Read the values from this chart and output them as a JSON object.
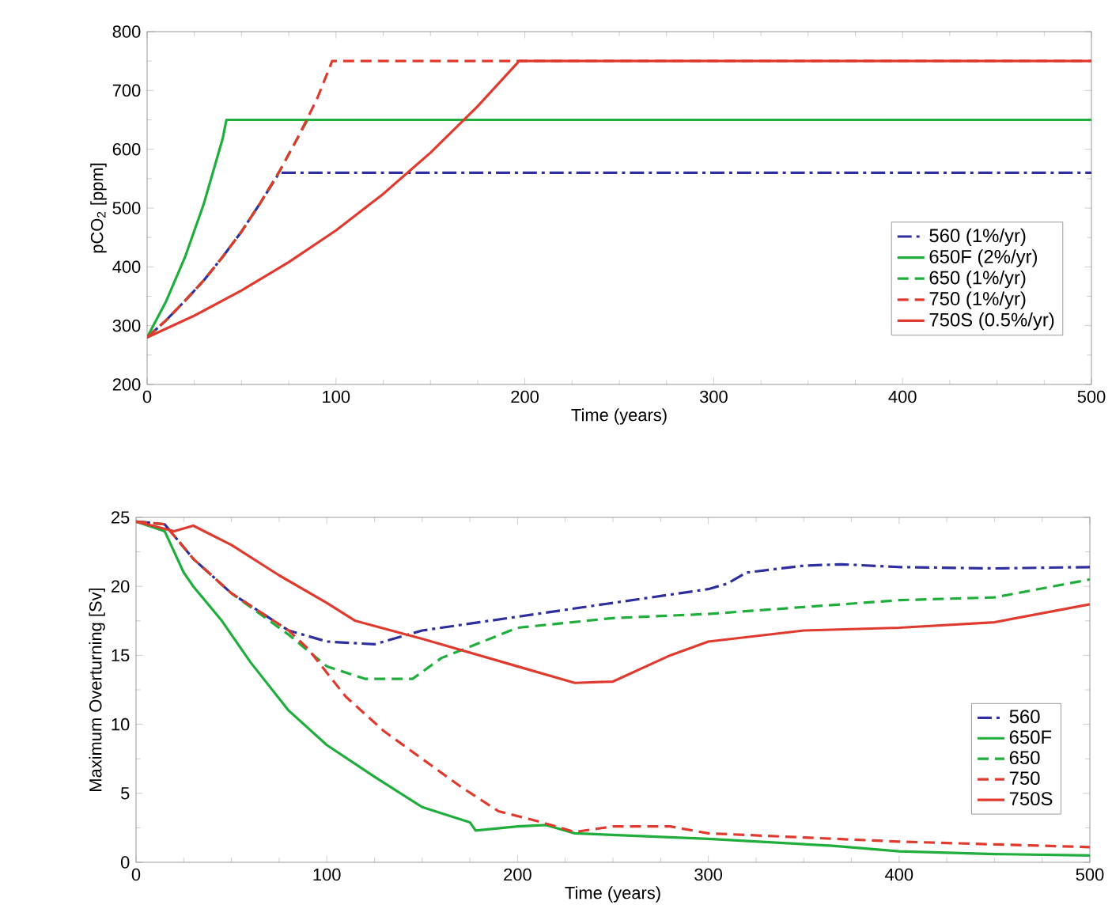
{
  "chart_data": [
    {
      "type": "line",
      "xlabel": "Time (years)",
      "ylabel": "pCO$_{2}$ [ppm]",
      "xlim": [
        0,
        500
      ],
      "ylim": [
        200,
        800
      ],
      "xticks": [
        0,
        100,
        200,
        300,
        400,
        500
      ],
      "yticks": [
        200,
        300,
        400,
        500,
        600,
        700,
        800
      ],
      "legend": "right",
      "series": [
        {
          "name": "560 (1%/yr)",
          "color": "#2e2e9e",
          "line_style": "dashdot",
          "x": [
            0,
            10,
            20,
            30,
            40,
            50,
            60,
            70,
            500
          ],
          "values": [
            280,
            309,
            342,
            377,
            417,
            460,
            509,
            560,
            560
          ]
        },
        {
          "name": "650F (2%/yr)",
          "color": "#1fad3c",
          "line_style": "solid",
          "x": [
            0,
            10,
            20,
            30,
            40,
            42,
            500
          ],
          "values": [
            280,
            341,
            416,
            507,
            618,
            650,
            650
          ]
        },
        {
          "name": "650 (1%/yr)",
          "color": "#1fad3c",
          "line_style": "dashed",
          "x": [
            0,
            10,
            20,
            30,
            40,
            50,
            60,
            70,
            80,
            85,
            500
          ],
          "values": [
            280,
            309,
            342,
            377,
            417,
            460,
            509,
            562,
            621,
            650,
            650
          ]
        },
        {
          "name": "750 (1%/yr)",
          "color": "#e03a2e",
          "line_style": "dashed",
          "x": [
            0,
            10,
            20,
            30,
            40,
            50,
            60,
            70,
            80,
            90,
            98,
            500
          ],
          "values": [
            280,
            309,
            342,
            377,
            417,
            460,
            509,
            562,
            621,
            686,
            750,
            750
          ]
        },
        {
          "name": "750S (0.5%/yr)",
          "color": "#e03a2e",
          "line_style": "solid",
          "x": [
            0,
            25,
            50,
            75,
            100,
            125,
            150,
            175,
            197,
            500
          ],
          "values": [
            280,
            317,
            360,
            408,
            462,
            524,
            594,
            673,
            750,
            750
          ]
        }
      ]
    },
    {
      "type": "line",
      "xlabel": "Time (years)",
      "ylabel": "Maximum Overturning [Sv]",
      "xlim": [
        0,
        500
      ],
      "ylim": [
        0,
        25
      ],
      "xticks": [
        0,
        100,
        200,
        300,
        400,
        500
      ],
      "yticks": [
        0,
        5,
        10,
        15,
        20,
        25
      ],
      "legend": "right",
      "series": [
        {
          "name": "560",
          "color": "#2e2e9e",
          "line_style": "dashdot",
          "x": [
            0,
            15,
            30,
            50,
            80,
            100,
            125,
            150,
            200,
            250,
            300,
            310,
            320,
            350,
            370,
            400,
            450,
            500
          ],
          "values": [
            24.7,
            24.5,
            22,
            19.5,
            16.8,
            16,
            15.8,
            16.8,
            17.8,
            18.8,
            19.8,
            20.2,
            21,
            21.5,
            21.6,
            21.4,
            21.3,
            21.4
          ]
        },
        {
          "name": "650F",
          "color": "#1fad3c",
          "line_style": "solid",
          "x": [
            0,
            15,
            25,
            30,
            45,
            60,
            80,
            100,
            125,
            150,
            175,
            178,
            200,
            215,
            230,
            300,
            365,
            400,
            450,
            500
          ],
          "values": [
            24.7,
            24,
            21,
            20,
            17.5,
            14.5,
            11,
            8.5,
            6.2,
            4,
            2.9,
            2.3,
            2.6,
            2.7,
            2.1,
            1.7,
            1.2,
            0.8,
            0.6,
            0.5
          ]
        },
        {
          "name": "650",
          "color": "#1fad3c",
          "line_style": "dashed",
          "x": [
            0,
            15,
            30,
            50,
            80,
            100,
            120,
            145,
            160,
            200,
            250,
            300,
            350,
            400,
            450,
            500
          ],
          "values": [
            24.7,
            24.5,
            22,
            19.5,
            16.5,
            14.2,
            13.3,
            13.3,
            14.8,
            17,
            17.7,
            18,
            18.5,
            19,
            19.2,
            20.5
          ]
        },
        {
          "name": "750",
          "color": "#e03a2e",
          "line_style": "dashed",
          "x": [
            0,
            15,
            30,
            50,
            80,
            90,
            110,
            130,
            150,
            170,
            190,
            210,
            230,
            250,
            280,
            300,
            350,
            400,
            450,
            500
          ],
          "values": [
            24.7,
            24.5,
            22,
            19.5,
            16.8,
            15.5,
            12,
            9.5,
            7.5,
            5.5,
            3.7,
            3,
            2.2,
            2.6,
            2.6,
            2.1,
            1.8,
            1.5,
            1.3,
            1.1
          ]
        },
        {
          "name": "750S",
          "color": "#e03a2e",
          "line_style": "solid",
          "x": [
            0,
            20,
            30,
            50,
            75,
            100,
            115,
            150,
            200,
            230,
            250,
            280,
            300,
            350,
            400,
            450,
            500
          ],
          "values": [
            24.7,
            24,
            24.4,
            23,
            20.8,
            18.8,
            17.5,
            16.2,
            14.2,
            13,
            13.1,
            15,
            16,
            16.8,
            17,
            17.4,
            18.7
          ]
        }
      ]
    }
  ]
}
